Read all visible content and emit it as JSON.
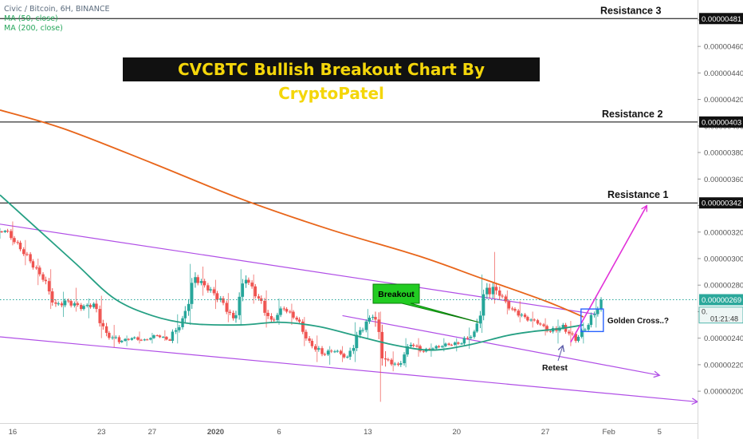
{
  "symbol_label": "Civic / Bitcoin, 6H, BINANCE",
  "ma_labels": [
    "MA (50, close)",
    "MA (200, close)"
  ],
  "chart_title": "CVCBTC Bullish Breakout Chart By CryptoPatel",
  "colors": {
    "up_candle": "#26a69a",
    "down_candle": "#ef5350",
    "ma50": "#26a084",
    "ma200": "#e8651a",
    "channel": "#b04ee6",
    "projection_arrow": "#e130d8",
    "title_bg": "#111111",
    "title_text": "#f4d60a",
    "callout": "#22cc22",
    "price_line": "#26a69a",
    "price_tag": "#2ba89b",
    "box": "#2962ff"
  },
  "chart_data": {
    "type": "candlestick",
    "title": "CVCBTC Bullish Breakout Chart By CryptoPatel",
    "subtitle": "Civic / Bitcoin, 6H, BINANCE",
    "x_tick_labels": [
      "16",
      "23",
      "27",
      "2020",
      "6",
      "13",
      "20",
      "27",
      "Feb",
      "5"
    ],
    "y_tick_labels": [
      "0.00000200",
      "0.00000220",
      "0.00000240",
      "0.00000260",
      "0.00000280",
      "0.00000300",
      "0.00000320",
      "0.00000340",
      "0.00000360",
      "0.00000380",
      "0.00000400",
      "0.00000420",
      "0.00000440",
      "0.00000460",
      "0.00000480"
    ],
    "y_tick_values": [
      2.0,
      2.2,
      2.4,
      2.6,
      2.8,
      3.0,
      3.2,
      3.4,
      3.6,
      3.8,
      4.0,
      4.2,
      4.4,
      4.6,
      4.8
    ],
    "y_unit_note": "tick values expressed in units of 1e-6 BTC",
    "ylim": [
      1.76,
      4.95
    ],
    "x_range": [
      "2019-12-15",
      "2020-02-08"
    ],
    "resistance_levels": [
      {
        "label": "Resistance 1",
        "value": 3.42,
        "tag": "0.00000342"
      },
      {
        "label": "Resistance 2",
        "value": 4.03,
        "tag": "0.00000403"
      },
      {
        "label": "Resistance 3",
        "value": 4.81,
        "tag": "0.00000481"
      }
    ],
    "last_price": {
      "value": 2.69,
      "tag": "0.00000269"
    },
    "current_price_tag": {
      "value": "0.",
      "countdown": "01:21:48",
      "price": 2.58
    },
    "annotations": {
      "breakout": "Breakout",
      "golden_cross": "Golden Cross..?",
      "retest": "Retest"
    },
    "ma200_points": [
      [
        "2019-12-15",
        4.12
      ],
      [
        "2019-12-20",
        3.98
      ],
      [
        "2019-12-27",
        3.72
      ],
      [
        "2020-01-03",
        3.45
      ],
      [
        "2020-01-10",
        3.22
      ],
      [
        "2020-01-17",
        3.02
      ],
      [
        "2020-01-22",
        2.85
      ],
      [
        "2020-01-27",
        2.68
      ],
      [
        "2020-01-30",
        2.56
      ]
    ],
    "ma50_points": [
      [
        "2019-12-15",
        3.48
      ],
      [
        "2019-12-18",
        3.22
      ],
      [
        "2019-12-21",
        2.96
      ],
      [
        "2019-12-24",
        2.7
      ],
      [
        "2019-12-27",
        2.57
      ],
      [
        "2019-12-30",
        2.51
      ],
      [
        "2020-01-03",
        2.5
      ],
      [
        "2020-01-06",
        2.52
      ],
      [
        "2020-01-09",
        2.49
      ],
      [
        "2020-01-12",
        2.42
      ],
      [
        "2020-01-15",
        2.35
      ],
      [
        "2020-01-18",
        2.31
      ],
      [
        "2020-01-21",
        2.35
      ],
      [
        "2020-01-24",
        2.42
      ],
      [
        "2020-01-26",
        2.45
      ],
      [
        "2020-01-28",
        2.47
      ],
      [
        "2020-01-30",
        2.5
      ]
    ],
    "channel_upper": [
      [
        "2019-12-15",
        3.26
      ],
      [
        "2020-01-31",
        2.58
      ]
    ],
    "channel_lower": [
      [
        "2019-12-15",
        2.41
      ],
      [
        "2020-02-08",
        1.92
      ]
    ],
    "channel_mid": [
      [
        "2020-01-11",
        2.57
      ],
      [
        "2020-02-05",
        2.12
      ]
    ],
    "projection_arrow": [
      [
        "2020-01-29",
        2.37
      ],
      [
        "2020-02-04",
        3.4
      ]
    ],
    "candles": [
      [
        "2019-12-15",
        3.18,
        3.23,
        3.15,
        3.21
      ],
      [
        "2019-12-16",
        3.21,
        3.28,
        3.1,
        3.12
      ],
      [
        "2019-12-17",
        3.12,
        3.14,
        2.95,
        2.98
      ],
      [
        "2019-12-18",
        2.98,
        3.0,
        2.8,
        2.84
      ],
      [
        "2019-12-19",
        2.84,
        2.92,
        2.62,
        2.66
      ],
      [
        "2019-12-20",
        2.66,
        2.75,
        2.56,
        2.68
      ],
      [
        "2019-12-21",
        2.68,
        2.78,
        2.6,
        2.62
      ],
      [
        "2019-12-22",
        2.62,
        2.7,
        2.55,
        2.66
      ],
      [
        "2019-12-23",
        2.66,
        2.72,
        2.4,
        2.44
      ],
      [
        "2019-12-24",
        2.44,
        2.5,
        2.33,
        2.37
      ],
      [
        "2019-12-25",
        2.37,
        2.42,
        2.34,
        2.4
      ],
      [
        "2019-12-26",
        2.4,
        2.45,
        2.36,
        2.39
      ],
      [
        "2019-12-27",
        2.39,
        2.44,
        2.36,
        2.42
      ],
      [
        "2019-12-28",
        2.42,
        2.46,
        2.38,
        2.38
      ],
      [
        "2019-12-29",
        2.38,
        2.58,
        2.36,
        2.55
      ],
      [
        "2019-12-30",
        2.55,
        2.96,
        2.5,
        2.86
      ],
      [
        "2019-12-31",
        2.86,
        2.94,
        2.72,
        2.76
      ],
      [
        "2020-01-01",
        2.76,
        2.84,
        2.62,
        2.7
      ],
      [
        "2020-01-02",
        2.7,
        2.74,
        2.52,
        2.55
      ],
      [
        "2020-01-03",
        2.55,
        2.92,
        2.5,
        2.84
      ],
      [
        "2020-01-04",
        2.84,
        2.88,
        2.66,
        2.7
      ],
      [
        "2020-01-05",
        2.7,
        2.76,
        2.48,
        2.54
      ],
      [
        "2020-01-06",
        2.54,
        2.7,
        2.5,
        2.62
      ],
      [
        "2020-01-07",
        2.62,
        2.66,
        2.5,
        2.54
      ],
      [
        "2020-01-08",
        2.54,
        2.56,
        2.34,
        2.38
      ],
      [
        "2020-01-09",
        2.38,
        2.42,
        2.22,
        2.28
      ],
      [
        "2020-01-10",
        2.28,
        2.34,
        2.2,
        2.3
      ],
      [
        "2020-01-11",
        2.3,
        2.34,
        2.22,
        2.26
      ],
      [
        "2020-01-12",
        2.26,
        2.52,
        2.22,
        2.46
      ],
      [
        "2020-01-13",
        2.46,
        2.62,
        2.4,
        2.56
      ],
      [
        "2020-01-14",
        2.56,
        2.6,
        1.92,
        2.24
      ],
      [
        "2020-01-15",
        2.24,
        2.3,
        2.15,
        2.2
      ],
      [
        "2020-01-16",
        2.2,
        2.4,
        2.18,
        2.35
      ],
      [
        "2020-01-17",
        2.35,
        2.4,
        2.26,
        2.3
      ],
      [
        "2020-01-18",
        2.3,
        2.36,
        2.26,
        2.34
      ],
      [
        "2020-01-19",
        2.34,
        2.4,
        2.3,
        2.35
      ],
      [
        "2020-01-20",
        2.35,
        2.4,
        2.3,
        2.36
      ],
      [
        "2020-01-21",
        2.36,
        2.48,
        2.32,
        2.45
      ],
      [
        "2020-01-22",
        2.45,
        2.88,
        2.44,
        2.78
      ],
      [
        "2020-01-23",
        2.78,
        3.05,
        2.66,
        2.72
      ],
      [
        "2020-01-24",
        2.72,
        2.76,
        2.58,
        2.62
      ],
      [
        "2020-01-25",
        2.62,
        2.68,
        2.52,
        2.56
      ],
      [
        "2020-01-26",
        2.56,
        2.6,
        2.48,
        2.51
      ],
      [
        "2020-01-27",
        2.51,
        2.55,
        2.42,
        2.45
      ],
      [
        "2020-01-28",
        2.45,
        2.54,
        2.36,
        2.5
      ],
      [
        "2020-01-29",
        2.5,
        2.53,
        2.34,
        2.38
      ],
      [
        "2020-01-30",
        2.38,
        2.52,
        2.36,
        2.5
      ],
      [
        "2020-01-31",
        2.5,
        2.72,
        2.48,
        2.69
      ]
    ]
  }
}
